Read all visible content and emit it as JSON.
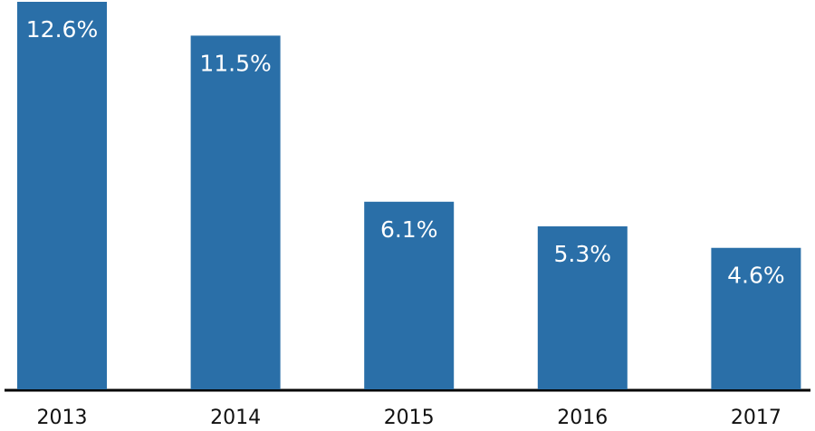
{
  "chart_data": {
    "type": "bar",
    "categories": [
      "2013",
      "2014",
      "2015",
      "2016",
      "2017"
    ],
    "values": [
      12.6,
      11.5,
      6.1,
      5.3,
      4.6
    ],
    "value_labels": [
      "12.6%",
      "11.5%",
      "6.1%",
      "5.3%",
      "4.6%"
    ],
    "color": "#2a6fa8"
  }
}
